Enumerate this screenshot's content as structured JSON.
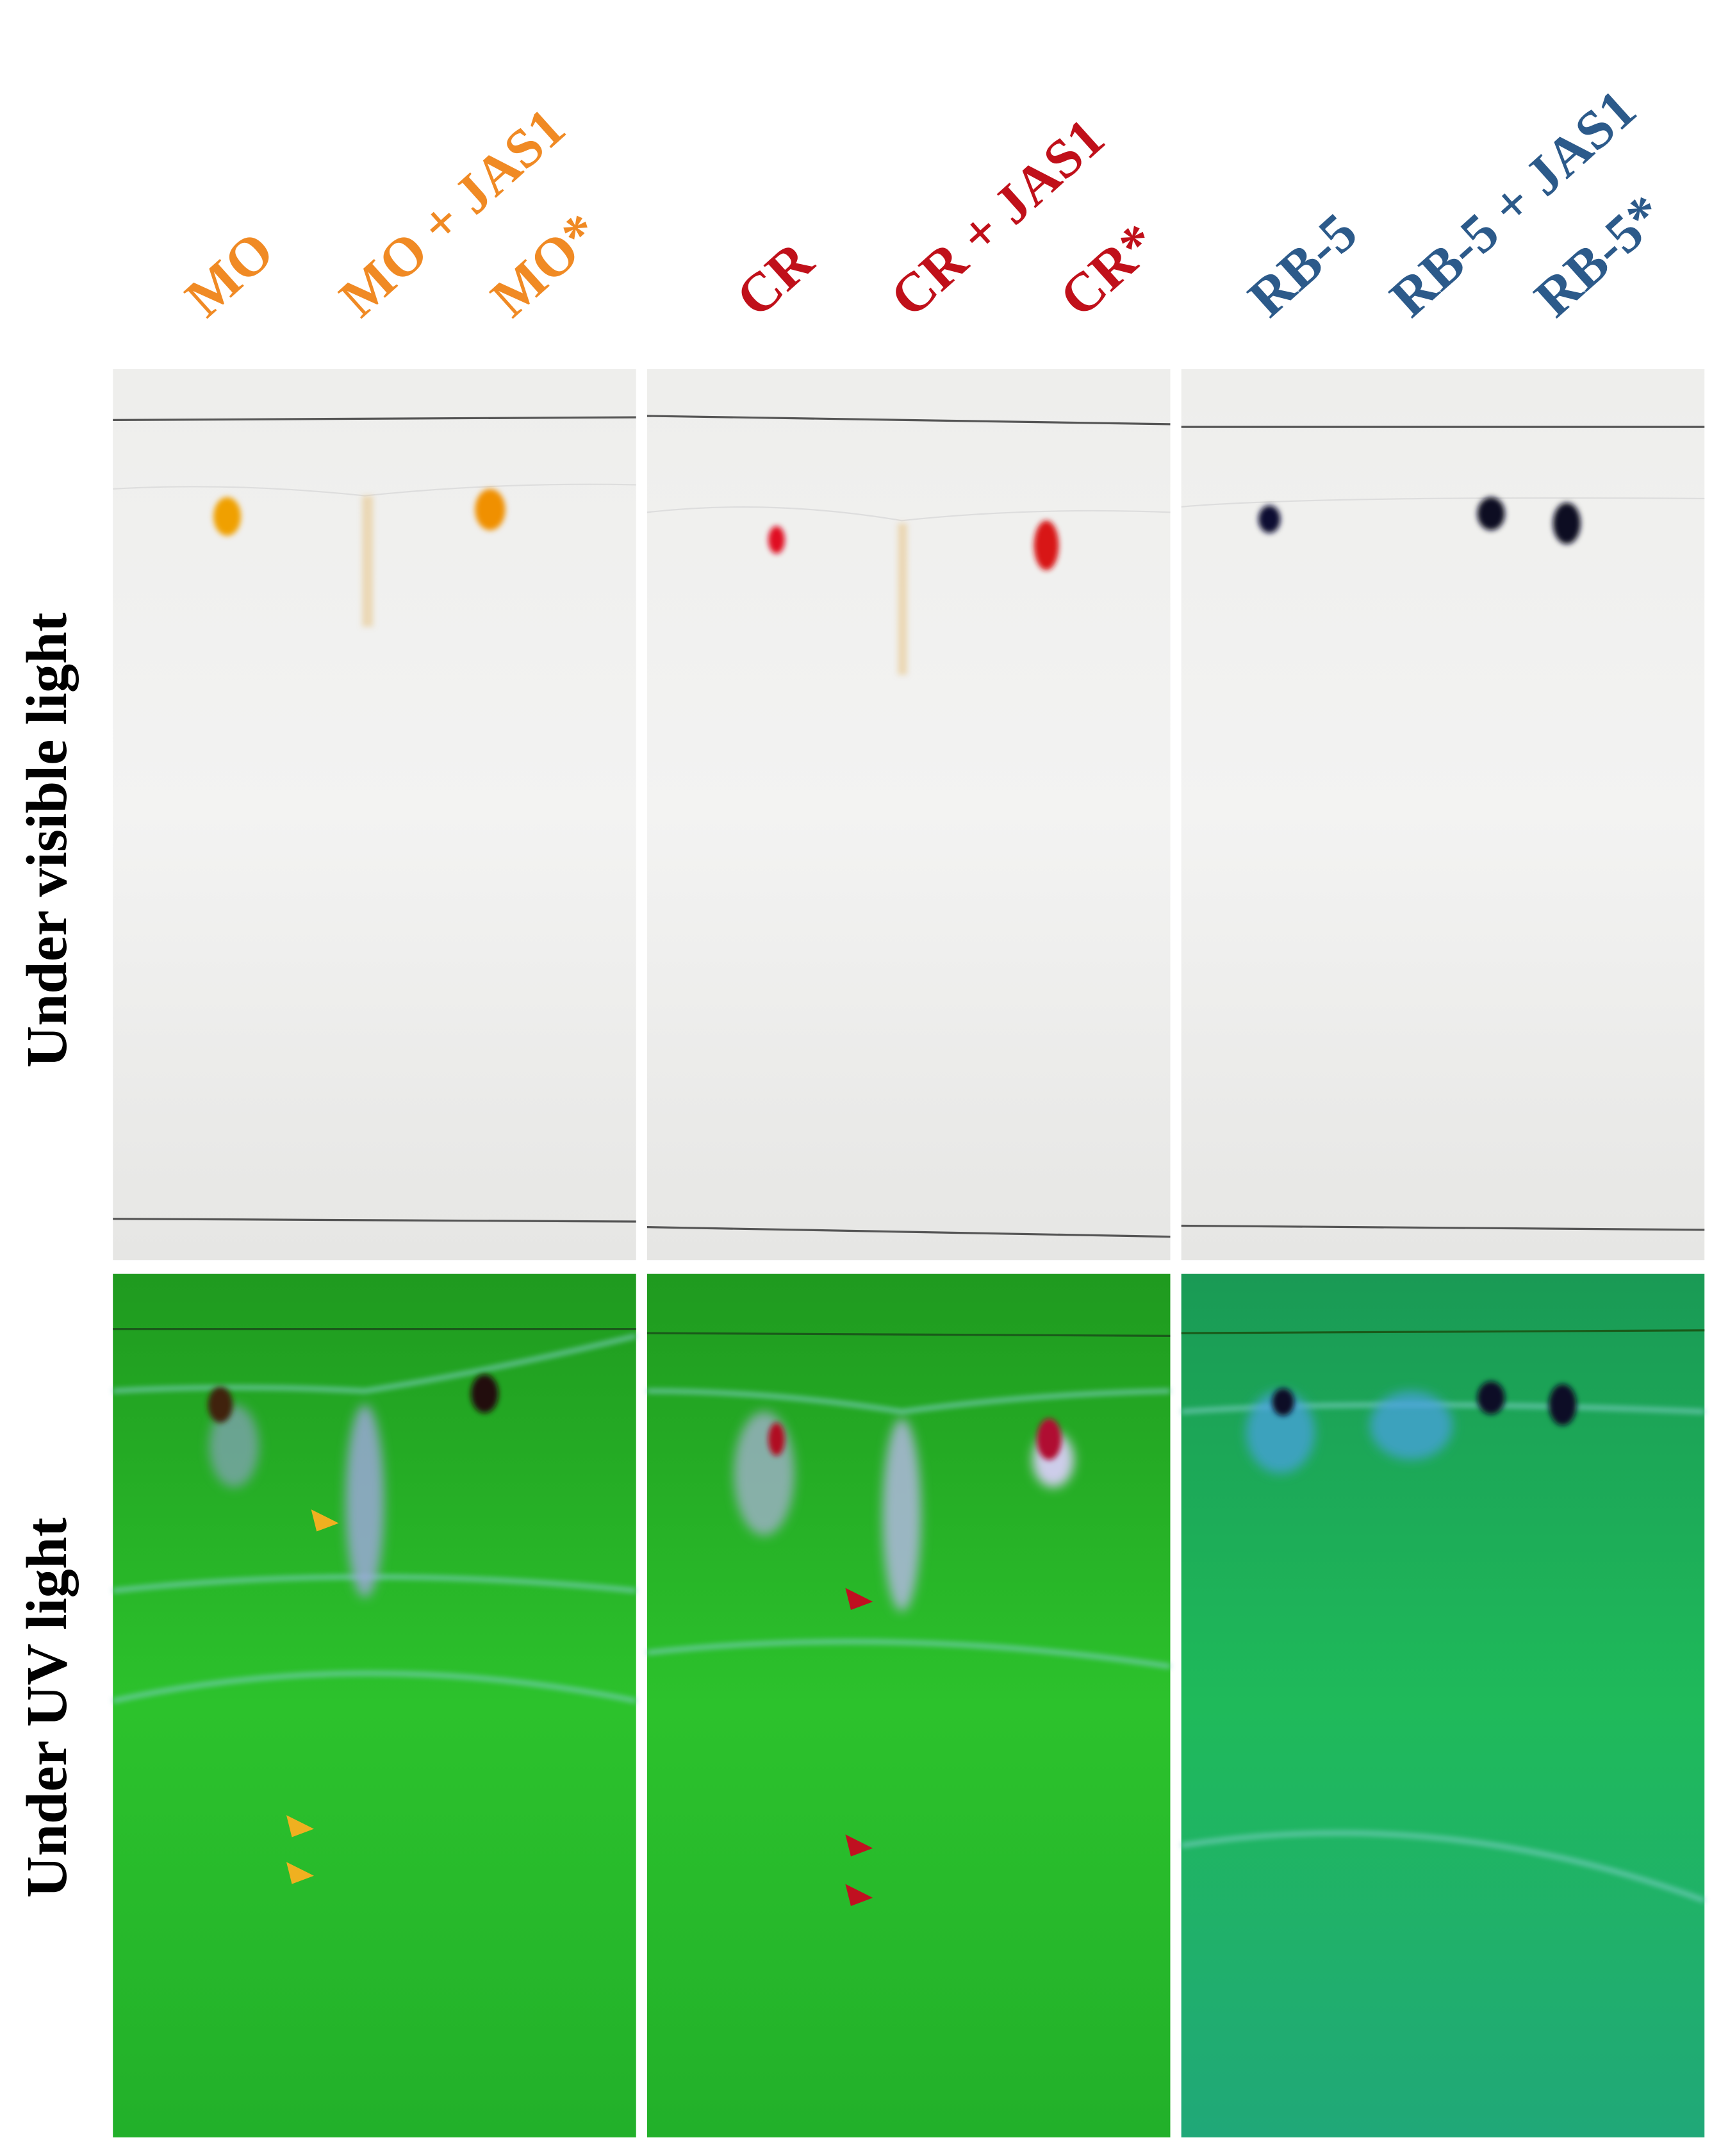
{
  "column_labels": [
    [
      "MO",
      "MO + JAS1",
      "MO*"
    ],
    [
      "CR",
      "CR + JAS1",
      "CR*"
    ],
    [
      "RB-5",
      "RB-5 + JAS1",
      "RB-5*"
    ]
  ],
  "row_labels": [
    "Under visible light",
    "Under UV light"
  ]
}
